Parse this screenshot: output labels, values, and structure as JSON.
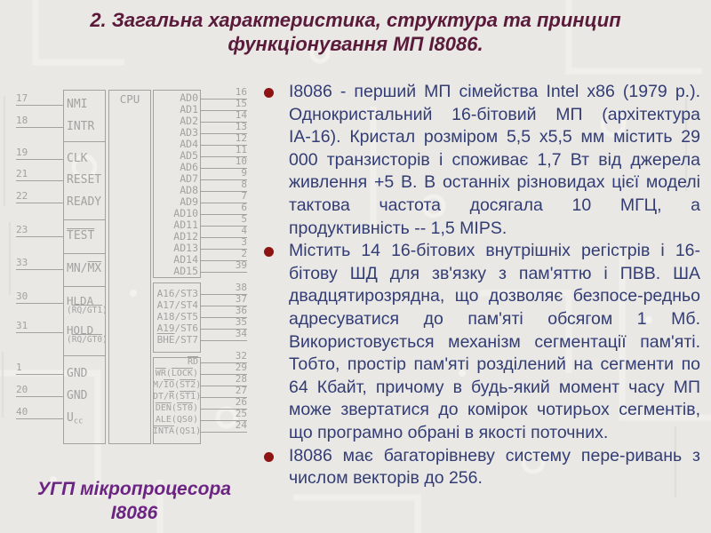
{
  "title": "2. Загальна характеристика, структура та принцип функціонування МП І8086.",
  "caption": {
    "line1": "УГП мікропроцесора",
    "line2": "І8086"
  },
  "bullets": [
    "І8086 - перший МП сімейства Intel x86 (1979 р.). Однокристальний 16-бітовий МП (архітектура ІА-16). Кристал розміром 5,5 х5,5 мм містить 29 000 транзисторів і споживає 1,7 Вт від джерела живлення +5 В. В останніх різновидах цієї моделі тактова частота досягала 10 МГЦ, а продуктивність -- 1,5 MIPS.",
    "Містить 14 16-бітових внутрішніх регістрів і 16-бітову ШД для зв'язку з пам'яттю і ПВВ. ША двадцятирозрядна, що дозволяє безпосе-редньо адресуватися до пам'яті обсягом 1 Мб. Використовується механізм сегментації пам'яті. Тобто, простір пам'яті розділений на сегменти по 64 Кбайт, причому в будь-який момент часу МП може звертатися до комірок чотирьох сегментів, що програмно обрані в якості поточних.",
    "І8086 має багаторівневу систему пере-ривань з числом векторів до 256."
  ],
  "colors": {
    "slide_background": "#e9e8e5",
    "title_text": "#5a1a3a",
    "body_text": "#333d74",
    "bullet_dot": "#8e1313",
    "caption_text": "#6c2482",
    "diagram_ink": "#a2a29f"
  },
  "diagram": {
    "cpu_label": "CPU",
    "left_pins": [
      {
        "num": "17",
        "lines": [
          [
            {
              "t": "NMI"
            }
          ]
        ]
      },
      {
        "num": "18",
        "lines": [
          [
            {
              "t": "INTR"
            }
          ]
        ]
      },
      {
        "num": "19",
        "lines": [
          [
            {
              "t": "CLK"
            }
          ]
        ]
      },
      {
        "num": "21",
        "lines": [
          [
            {
              "t": "RESET"
            }
          ]
        ]
      },
      {
        "num": "22",
        "lines": [
          [
            {
              "t": "READY"
            }
          ]
        ]
      },
      {
        "num": "23",
        "lines": [
          [
            {
              "t": "TEST",
              "o": 1
            }
          ]
        ]
      },
      {
        "num": "33",
        "lines": [
          [
            {
              "t": "MN/"
            },
            {
              "t": "MX",
              "o": 1
            }
          ]
        ]
      },
      {
        "num": "30",
        "lines": [
          [
            {
              "t": "HLDA"
            }
          ],
          [
            {
              "t": "("
            },
            {
              "t": "RQ/GT1",
              "o": 1
            },
            {
              "t": ")"
            }
          ]
        ]
      },
      {
        "num": "31",
        "lines": [
          [
            {
              "t": "HOLD"
            }
          ],
          [
            {
              "t": "("
            },
            {
              "t": "RQ/GT0",
              "o": 1
            },
            {
              "t": ")"
            }
          ]
        ]
      },
      {
        "num": "1",
        "lines": [
          [
            {
              "t": "GND"
            }
          ]
        ]
      },
      {
        "num": "20",
        "lines": [
          [
            {
              "t": "GND"
            }
          ]
        ]
      },
      {
        "num": "40",
        "lines": [
          [
            {
              "t": "U"
            },
            {
              "t": "cc",
              "sub": 1
            }
          ]
        ]
      }
    ],
    "right_groups": [
      {
        "pins": [
          {
            "num": "16",
            "lines": [
              [
                {
                  "t": "AD0"
                }
              ]
            ]
          },
          {
            "num": "15",
            "lines": [
              [
                {
                  "t": "AD1"
                }
              ]
            ]
          },
          {
            "num": "14",
            "lines": [
              [
                {
                  "t": "AD2"
                }
              ]
            ]
          },
          {
            "num": "13",
            "lines": [
              [
                {
                  "t": "AD3"
                }
              ]
            ]
          },
          {
            "num": "12",
            "lines": [
              [
                {
                  "t": "AD4"
                }
              ]
            ]
          },
          {
            "num": "11",
            "lines": [
              [
                {
                  "t": "AD5"
                }
              ]
            ]
          },
          {
            "num": "10",
            "lines": [
              [
                {
                  "t": "AD6"
                }
              ]
            ]
          },
          {
            "num": "9",
            "lines": [
              [
                {
                  "t": "AD7"
                }
              ]
            ]
          },
          {
            "num": "8",
            "lines": [
              [
                {
                  "t": "AD8"
                }
              ]
            ]
          },
          {
            "num": "7",
            "lines": [
              [
                {
                  "t": "AD9"
                }
              ]
            ]
          },
          {
            "num": "6",
            "lines": [
              [
                {
                  "t": "AD10"
                }
              ]
            ]
          },
          {
            "num": "5",
            "lines": [
              [
                {
                  "t": "AD11"
                }
              ]
            ]
          },
          {
            "num": "4",
            "lines": [
              [
                {
                  "t": "AD12"
                }
              ]
            ]
          },
          {
            "num": "3",
            "lines": [
              [
                {
                  "t": "AD13"
                }
              ]
            ]
          },
          {
            "num": "2",
            "lines": [
              [
                {
                  "t": "AD14"
                }
              ]
            ]
          },
          {
            "num": "39",
            "lines": [
              [
                {
                  "t": "AD15"
                }
              ]
            ]
          }
        ]
      },
      {
        "pins": [
          {
            "num": "38",
            "lines": [
              [
                {
                  "t": "A16/ST3"
                }
              ]
            ]
          },
          {
            "num": "37",
            "lines": [
              [
                {
                  "t": "A17/ST4"
                }
              ]
            ]
          },
          {
            "num": "36",
            "lines": [
              [
                {
                  "t": "A18/ST5"
                }
              ]
            ]
          },
          {
            "num": "35",
            "lines": [
              [
                {
                  "t": "A19/ST6"
                }
              ]
            ]
          },
          {
            "num": "34",
            "lines": [
              [
                {
                  "t": "BHE",
                  "o": 1
                },
                {
                  "t": "/ST7"
                }
              ]
            ]
          }
        ]
      },
      {
        "pins": [
          {
            "num": "32",
            "lines": [
              [
                {
                  "t": "RD",
                  "o": 1
                }
              ]
            ]
          },
          {
            "num": "29",
            "lines": [
              [
                {
                  "t": "WR",
                  "o": 1
                },
                {
                  "t": "("
                },
                {
                  "t": "LOCK",
                  "o": 1
                },
                {
                  "t": ")"
                }
              ]
            ]
          },
          {
            "num": "28",
            "lines": [
              [
                {
                  "t": "M/"
                },
                {
                  "t": "IO",
                  "o": 1
                },
                {
                  "t": "("
                },
                {
                  "t": "ST2",
                  "o": 1
                },
                {
                  "t": ")"
                }
              ]
            ]
          },
          {
            "num": "27",
            "lines": [
              [
                {
                  "t": "DT/"
                },
                {
                  "t": "R",
                  "o": 1
                },
                {
                  "t": "("
                },
                {
                  "t": "ST1",
                  "o": 1
                },
                {
                  "t": ")"
                }
              ]
            ]
          },
          {
            "num": "26",
            "lines": [
              [
                {
                  "t": "DEN",
                  "o": 1
                },
                {
                  "t": "("
                },
                {
                  "t": "ST0",
                  "o": 1
                },
                {
                  "t": ")"
                }
              ]
            ]
          },
          {
            "num": "25",
            "lines": [
              [
                {
                  "t": "ALE(QS0)"
                }
              ]
            ]
          },
          {
            "num": "24",
            "lines": [
              [
                {
                  "t": "INTA",
                  "o": 1
                },
                {
                  "t": "(QS1)"
                }
              ]
            ]
          }
        ]
      }
    ]
  }
}
